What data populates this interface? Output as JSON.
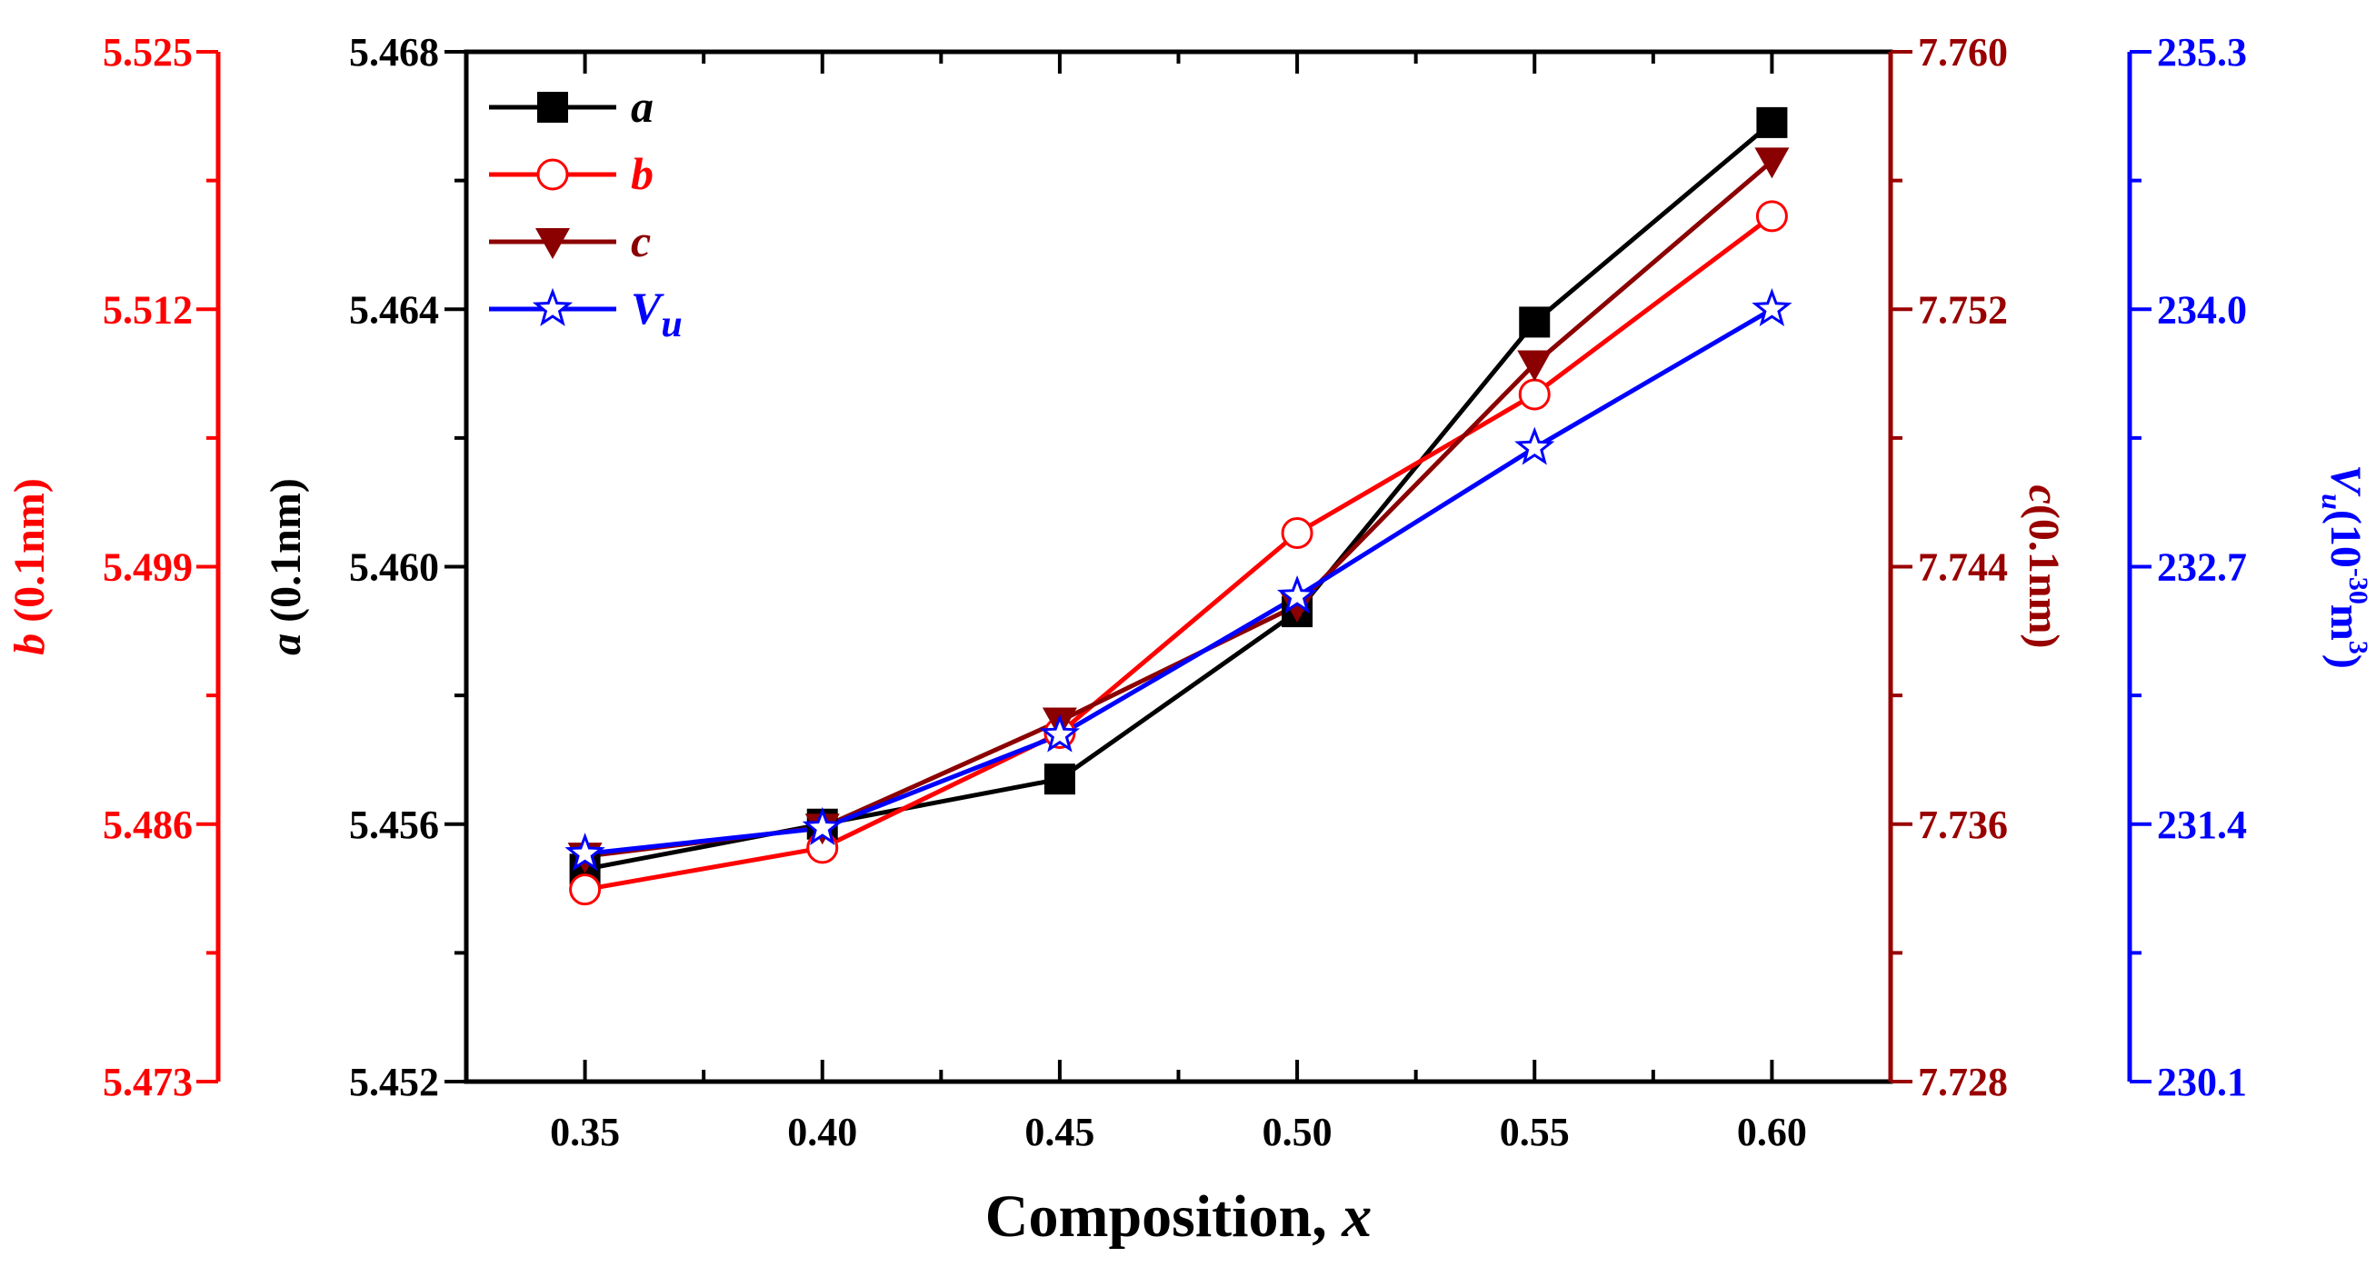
{
  "chart_data": {
    "type": "line",
    "x": [
      0.35,
      0.4,
      0.45,
      0.5,
      0.55,
      0.6
    ],
    "x_tick_labels": [
      "0.35",
      "0.40",
      "0.45",
      "0.50",
      "0.55",
      "0.60"
    ],
    "xlim": [
      0.325,
      0.625
    ],
    "xlabel": "Composition, ",
    "xlabel_var": "x",
    "axes": {
      "a": {
        "label_var": "a",
        "label_unit": " (0.1nm)",
        "ylim": [
          5.452,
          5.468
        ],
        "ticks": [
          "5.452",
          "5.456",
          "5.460",
          "5.464",
          "5.468"
        ],
        "color": "#000000"
      },
      "b": {
        "label_var": "b",
        "label_unit": " (0.1nm)",
        "ylim": [
          5.473,
          5.525
        ],
        "ticks": [
          "5.473",
          "5.486",
          "5.499",
          "5.512",
          "5.525"
        ],
        "color": "#ff0000"
      },
      "c": {
        "label_var": "c",
        "label_unit": "(0.1nm)",
        "ylim": [
          7.728,
          7.76
        ],
        "ticks": [
          "7.728",
          "7.736",
          "7.744",
          "7.752",
          "7.760"
        ],
        "color": "#990000"
      },
      "V": {
        "label_var": "V",
        "label_sub": "u",
        "label_base": "(10",
        "label_exp": "-30",
        "label_tail": "m",
        "label_tail_exp": "3",
        "label_close": ")",
        "ylim": [
          230.1,
          235.3
        ],
        "ticks": [
          "230.1",
          "231.4",
          "232.7",
          "234.0",
          "235.3"
        ],
        "color": "#0000ff"
      }
    },
    "series": [
      {
        "name": "a",
        "legend": "a",
        "legend_sub": "",
        "axis": "a",
        "color": "#000000",
        "marker": "square",
        "values": [
          5.4553,
          5.456,
          5.4567,
          5.4593,
          5.4638,
          5.4669
        ]
      },
      {
        "name": "b",
        "legend": "b",
        "legend_sub": "",
        "axis": "b",
        "color": "#ff0000",
        "marker": "circle",
        "values": [
          5.4827,
          5.4848,
          5.4906,
          5.5007,
          5.5077,
          5.5167
        ]
      },
      {
        "name": "c",
        "legend": "c",
        "legend_sub": "",
        "axis": "c",
        "color": "#8b0000",
        "marker": "triangle-down",
        "values": [
          7.735,
          7.7359,
          7.7392,
          7.7428,
          7.7503,
          7.7566
        ]
      },
      {
        "name": "V",
        "legend": "V",
        "legend_sub": "u",
        "axis": "V",
        "color": "#0000ff",
        "marker": "star",
        "values": [
          231.25,
          231.38,
          231.85,
          232.55,
          233.3,
          234.0
        ]
      }
    ]
  }
}
